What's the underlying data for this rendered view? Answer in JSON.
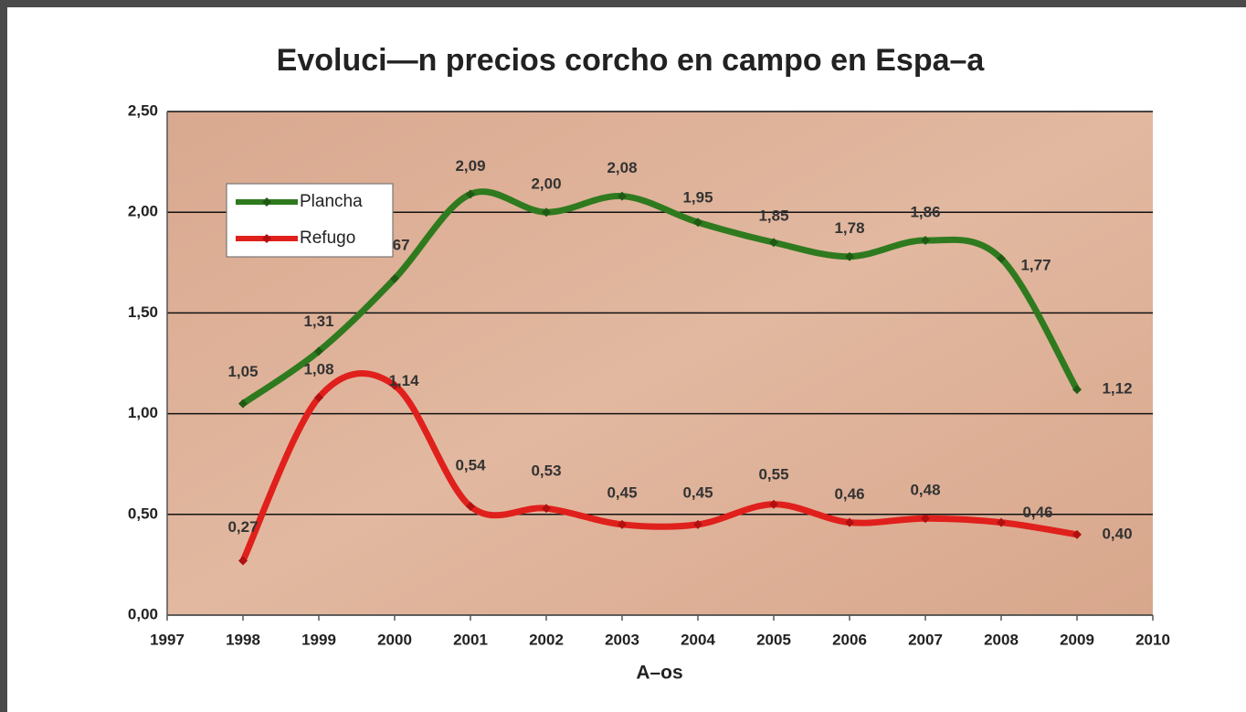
{
  "chart_data": {
    "type": "line",
    "title": "Evoluci—n precios corcho en campo en Espa–a",
    "x_label": "A–os",
    "x": [
      1998,
      1999,
      2000,
      2001,
      2002,
      2003,
      2004,
      2005,
      2006,
      2007,
      2008,
      2009
    ],
    "series": [
      {
        "name": "Plancha",
        "color": "#2f7a1f",
        "values": [
          1.05,
          1.31,
          1.67,
          2.09,
          2.0,
          2.08,
          1.95,
          1.85,
          1.78,
          1.86,
          1.77,
          1.12
        ],
        "value_labels": [
          "1,05",
          "1,31",
          "1,67",
          "2,09",
          "2,00",
          "2,08",
          "1,95",
          "1,85",
          "1,78",
          "1,86",
          "1,77",
          "1,12"
        ]
      },
      {
        "name": "Refugo",
        "color": "#e0201c",
        "values": [
          0.27,
          1.08,
          1.14,
          0.54,
          0.53,
          0.45,
          0.45,
          0.55,
          0.46,
          0.48,
          0.46,
          0.4
        ],
        "value_labels": [
          "0,27",
          "1,08",
          "1,14",
          "0,54",
          "0,53",
          "0,45",
          "0,45",
          "0,55",
          "0,46",
          "0,48",
          "0,46",
          "0,40"
        ]
      }
    ],
    "xlim": [
      1997,
      2010
    ],
    "xticks": [
      1997,
      1998,
      1999,
      2000,
      2001,
      2002,
      2003,
      2004,
      2005,
      2006,
      2007,
      2008,
      2009,
      2010
    ],
    "ylim": [
      0,
      2.5
    ],
    "yticks": [
      {
        "value": 0,
        "label": "0,00"
      },
      {
        "value": 0.5,
        "label": "0,50"
      },
      {
        "value": 1,
        "label": "1,00"
      },
      {
        "value": 1.5,
        "label": "1,50"
      },
      {
        "value": 2,
        "label": "2,00"
      },
      {
        "value": 2.5,
        "label": "2,50"
      }
    ],
    "grid": true,
    "smooth": true,
    "legend": "upper left"
  }
}
